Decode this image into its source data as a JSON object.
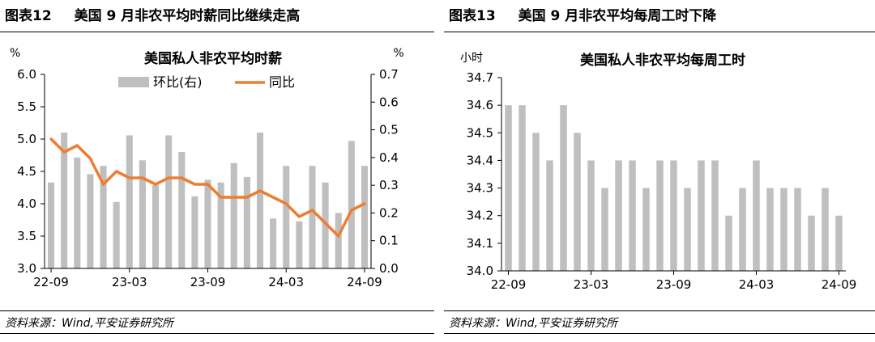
{
  "figures": [
    {
      "number": "图表12",
      "title": "美国 9 月非农平均时薪同比继续走高",
      "source": "资料来源：Wind,平安证券研究所"
    },
    {
      "number": "图表13",
      "title": "美国 9 月非农平均每周工时下降",
      "source": "资料来源：Wind,平安证券研究所"
    }
  ],
  "chart_data": [
    {
      "type": "bar+line",
      "title": "美国私人非农平均时薪",
      "left_unit": "%",
      "right_unit": "%",
      "ylim_left": [
        3.0,
        6.0
      ],
      "yticks_left": [
        "3.0",
        "3.5",
        "4.0",
        "4.5",
        "5.0",
        "5.5",
        "6.0"
      ],
      "ylim_right": [
        0.0,
        0.7
      ],
      "yticks_right": [
        "0.0",
        "0.1",
        "0.2",
        "0.3",
        "0.4",
        "0.5",
        "0.6",
        "0.7"
      ],
      "x_tick_labels": [
        "22-09",
        "23-03",
        "23-09",
        "24-03",
        "24-09"
      ],
      "x_tick_index": [
        0,
        6,
        12,
        18,
        24
      ],
      "legend": {
        "bar_label": "环比(右)",
        "line_label": "同比"
      },
      "colors": {
        "bar": "#bfbfbf",
        "line": "#ed7d31"
      },
      "series": [
        {
          "name": "环比(右)",
          "axis": "right",
          "kind": "bar",
          "values": [
            0.31,
            0.49,
            0.4,
            0.34,
            0.37,
            0.24,
            0.48,
            0.39,
            0.3,
            0.48,
            0.42,
            0.26,
            0.32,
            0.31,
            0.38,
            0.33,
            0.49,
            0.18,
            0.37,
            0.17,
            0.37,
            0.31,
            0.2,
            0.46,
            0.37
          ]
        },
        {
          "name": "同比",
          "axis": "left",
          "kind": "line",
          "values": [
            5.0,
            4.8,
            4.9,
            4.7,
            4.3,
            4.5,
            4.4,
            4.4,
            4.3,
            4.4,
            4.4,
            4.3,
            4.3,
            4.1,
            4.1,
            4.1,
            4.2,
            4.1,
            4.0,
            3.8,
            3.9,
            3.7,
            3.5,
            3.9,
            4.0
          ]
        }
      ]
    },
    {
      "type": "bar",
      "title": "美国私人非农平均每周工时",
      "left_unit": "小时",
      "ylim": [
        34.0,
        34.7
      ],
      "yticks": [
        "34.0",
        "34.1",
        "34.2",
        "34.3",
        "34.4",
        "34.5",
        "34.6",
        "34.7"
      ],
      "x_tick_labels": [
        "22-09",
        "23-03",
        "23-09",
        "24-03",
        "24-09"
      ],
      "x_tick_index": [
        0,
        6,
        12,
        18,
        24
      ],
      "colors": {
        "bar": "#bfbfbf"
      },
      "series": [
        {
          "name": "平均每周工时",
          "kind": "bar",
          "values": [
            34.6,
            34.6,
            34.5,
            34.4,
            34.6,
            34.5,
            34.4,
            34.3,
            34.4,
            34.4,
            34.3,
            34.4,
            34.4,
            34.3,
            34.4,
            34.4,
            34.2,
            34.3,
            34.4,
            34.3,
            34.3,
            34.3,
            34.2,
            34.3,
            34.2
          ]
        }
      ]
    }
  ]
}
